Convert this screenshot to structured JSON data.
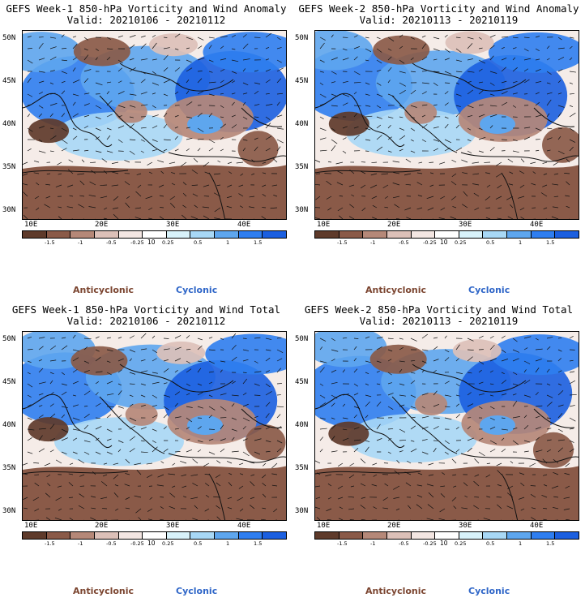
{
  "colors": {
    "scale": [
      "#5e3a2a",
      "#8a5a48",
      "#b58878",
      "#dcc0b8",
      "#f3e6e2",
      "#ffffff",
      "#d8f2fa",
      "#a8d8f6",
      "#5ea6ee",
      "#2f7ef0",
      "#1b5fe0"
    ],
    "anticyclonic": "#7b4530",
    "cyclonic": "#2f66c8"
  },
  "colorbar": {
    "labels": [
      "-1.5",
      "-1",
      "-0.5",
      "-0.25",
      "0.25",
      "0.5",
      "1",
      "1.5"
    ],
    "unit": "10"
  },
  "lat_ticks": [
    "50N",
    "45N",
    "40N",
    "35N",
    "30N"
  ],
  "lon_ticks": [
    "10E",
    "20E",
    "30E",
    "40E"
  ],
  "legend": {
    "anticyclonic": "Anticyclonic",
    "cyclonic": "Cyclonic"
  },
  "panels": [
    {
      "title": "GEFS Week-1 850-hPa Vorticity and Wind Anomaly",
      "subtitle": "Valid: 20210106 - 20210112"
    },
    {
      "title": "GEFS Week-2 850-hPa Vorticity and Wind Anomaly",
      "subtitle": "Valid: 20210113 - 20210119"
    },
    {
      "title": "GEFS Week-1 850-hPa Vorticity and Wind Total",
      "subtitle": "Valid: 20210106 - 20210112"
    },
    {
      "title": "GEFS Week-2 850-hPa Vorticity and Wind Total",
      "subtitle": "Valid: 20210113 - 20210119"
    }
  ]
}
